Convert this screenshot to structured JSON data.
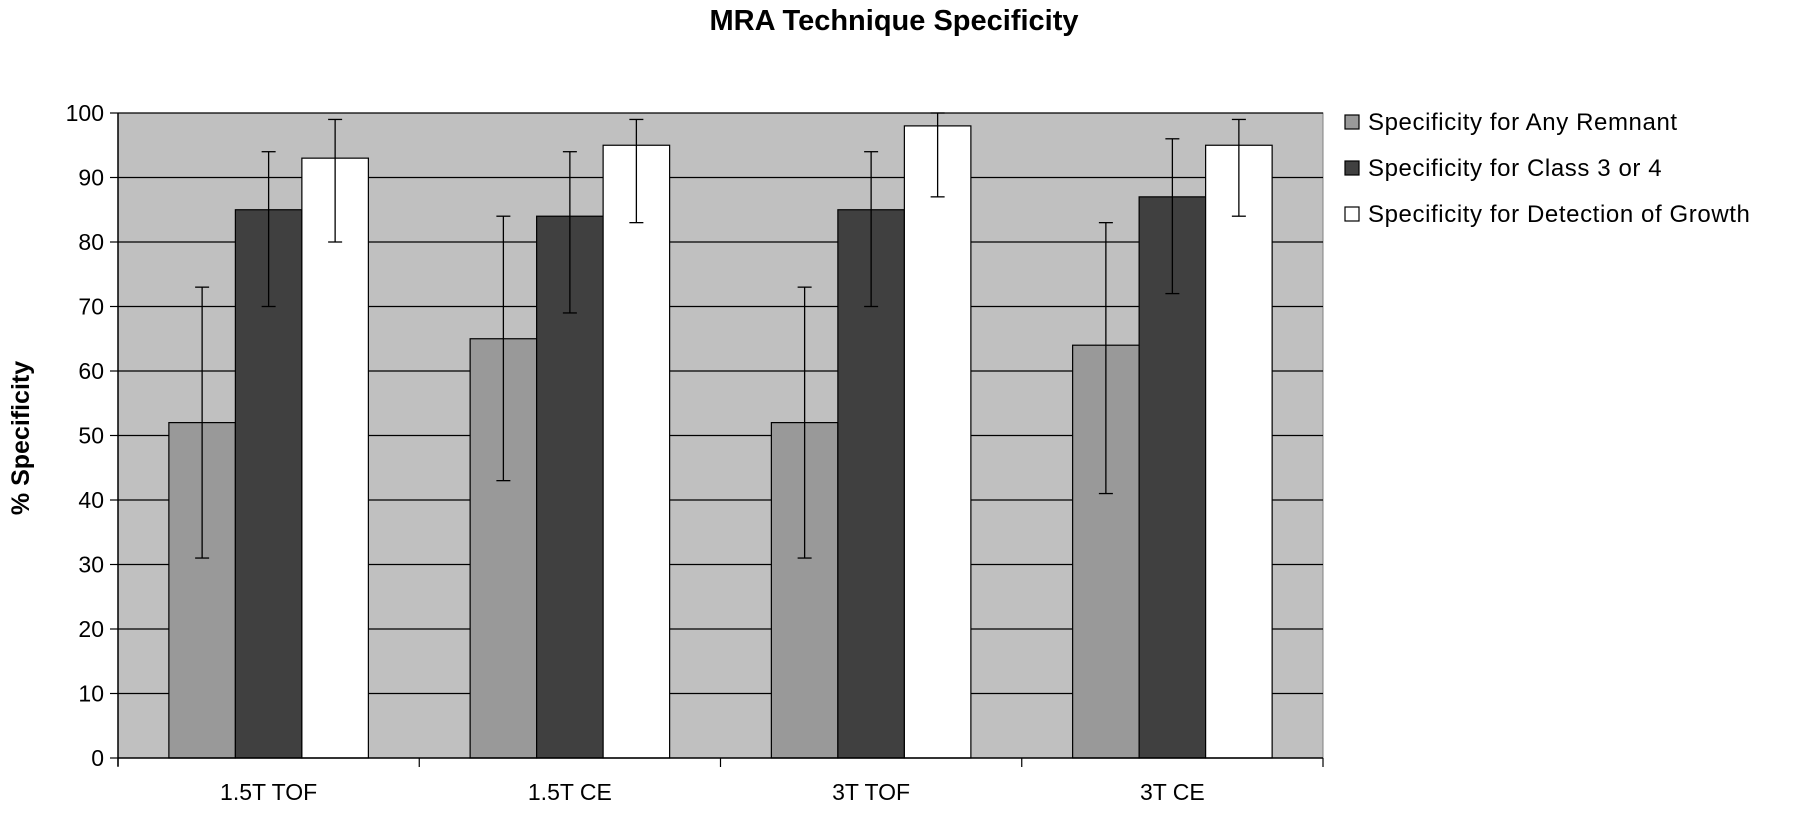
{
  "chart_data": {
    "type": "bar",
    "title": "MRA Technique Specificity",
    "xlabel": "",
    "ylabel": "% Specificity",
    "ylim": [
      0,
      100
    ],
    "yticks": [
      0,
      10,
      20,
      30,
      40,
      50,
      60,
      70,
      80,
      90,
      100
    ],
    "grid": true,
    "legend_position": "right",
    "categories": [
      "1.5T TOF",
      "1.5T CE",
      "3T TOF",
      "3T CE"
    ],
    "series": [
      {
        "name": "Specificity for Any Remnant",
        "color": "#999999",
        "values": [
          52,
          65,
          52,
          64
        ],
        "error_low": [
          31,
          43,
          31,
          41
        ],
        "error_high": [
          73,
          84,
          73,
          83
        ]
      },
      {
        "name": "Specificity for Class 3 or 4",
        "color": "#404040",
        "values": [
          85,
          84,
          85,
          87
        ],
        "error_low": [
          70,
          69,
          70,
          72
        ],
        "error_high": [
          94,
          94,
          94,
          96
        ]
      },
      {
        "name": "Specificity for Detection of Growth",
        "color": "#ffffff",
        "values": [
          93,
          95,
          98,
          95
        ],
        "error_low": [
          80,
          83,
          87,
          84
        ],
        "error_high": [
          99,
          99,
          100,
          99
        ]
      }
    ],
    "plot_background": "#c0c0c0"
  }
}
